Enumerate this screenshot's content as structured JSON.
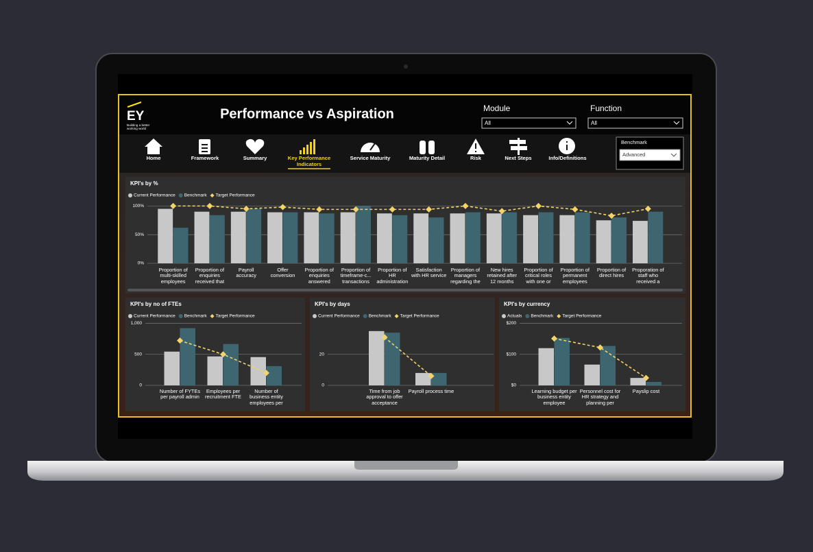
{
  "header": {
    "logo": "EY",
    "tagline": "Building a better working world",
    "title": "Performance vs Aspiration"
  },
  "filters": [
    {
      "label": "Module",
      "value": "All"
    },
    {
      "label": "Function",
      "value": "All"
    },
    {
      "label": "Benchmark",
      "value": "Advanced"
    }
  ],
  "nav": [
    "Home",
    "Framework",
    "Summary",
    "Key Performance Indicators",
    "Service Maturity",
    "Maturity Detail",
    "Risk",
    "Next Steps",
    "Info/Definitions"
  ],
  "chart_data": [
    {
      "type": "bar",
      "title": "KPI's by %",
      "categories": [
        "Proportion of multi-skilled employees",
        "Proportion of enquiries received that",
        "Payroll accuracy",
        "Offer conversion",
        "Proportion of enquiries answered",
        "Proportion of timeframe-c... transactions",
        "Proportion of HR administration",
        "Satisfaction with HR service",
        "Proportion of managers regarding the",
        "New hires retained after 12 months",
        "Proportion of critical roles with one or",
        "Proportion of permanent employees",
        "Proportion of direct hires",
        "Proporation of staff who received a"
      ],
      "series": [
        {
          "name": "Current Performance",
          "type": "bar",
          "color": "#c8c8c8",
          "values": [
            95,
            90,
            90,
            89,
            89,
            89,
            87,
            87,
            87,
            87,
            84,
            84,
            75,
            74
          ]
        },
        {
          "name": "Benchmark",
          "type": "bar",
          "color": "#3e6670",
          "values": [
            62,
            84,
            95,
            89,
            87,
            100,
            84,
            80,
            89,
            89,
            89,
            89,
            80,
            90
          ]
        },
        {
          "name": "Target Performance",
          "type": "line",
          "color": "#f2d46b",
          "values": [
            100,
            100,
            95,
            98,
            94,
            94,
            94,
            94,
            100,
            91,
            100,
            94,
            83,
            95
          ]
        }
      ],
      "ylim": [
        0,
        110
      ],
      "yticks": [
        {
          "value": 0,
          "label": "0%"
        },
        {
          "value": 50,
          "label": "50%"
        },
        {
          "value": 100,
          "label": "100%"
        }
      ],
      "grid": true
    },
    {
      "type": "bar",
      "title": "KPI's by no of FTEs",
      "categories": [
        "Number of FYTEs per payroll admin",
        "Employees per recruitment FTE",
        "Number of business entity employees per"
      ],
      "series": [
        {
          "name": "Current Performance",
          "type": "bar",
          "color": "#c8c8c8",
          "values": [
            544,
            467,
            456
          ]
        },
        {
          "name": "Benchmark",
          "type": "bar",
          "color": "#3e6670",
          "values": [
            922,
            667,
            311
          ]
        },
        {
          "name": "Target Performance",
          "type": "line",
          "color": "#f2d46b",
          "values": [
            722,
            500,
            200
          ]
        }
      ],
      "ylim": [
        0,
        1050
      ],
      "yticks": [
        0,
        500,
        {
          "value": 1000,
          "label": "1,000"
        }
      ],
      "grid": true
    },
    {
      "type": "bar",
      "title": "KPI's by days",
      "categories": [
        "Time from job approval to offer acceptance",
        "Payroll process time"
      ],
      "series": [
        {
          "name": "Current Performance",
          "type": "bar",
          "color": "#c8c8c8",
          "values": [
            35,
            8
          ]
        },
        {
          "name": "Benchmark",
          "type": "bar",
          "color": "#3e6670",
          "values": [
            34,
            8
          ]
        },
        {
          "name": "Target Performance",
          "type": "line",
          "color": "#f2d46b",
          "values": [
            31,
            6
          ]
        }
      ],
      "ylim": [
        0,
        42
      ],
      "yticks": [
        0,
        20
      ],
      "grid": true
    },
    {
      "type": "bar",
      "title": "KPI's by currency",
      "categories": [
        "Learning budget per business entity employee",
        "Personnel cost for HR strategy and planning per",
        "Payslip cost"
      ],
      "series": [
        {
          "name": "Actuals",
          "type": "bar",
          "color": "#c8c8c8",
          "values": [
            120,
            67,
            24
          ]
        },
        {
          "name": "Benchmark",
          "type": "bar",
          "color": "#3e6670",
          "values": [
            153,
            127,
            11
          ]
        },
        {
          "name": "Target Performance",
          "type": "line",
          "color": "#f2d46b",
          "values": [
            151,
            122,
            24
          ]
        }
      ],
      "ylim": [
        0,
        210
      ],
      "yticks": [
        {
          "value": 0,
          "label": "$0"
        },
        {
          "value": 100,
          "label": "$100"
        },
        {
          "value": 200,
          "label": "$200"
        }
      ],
      "grid": true
    }
  ]
}
